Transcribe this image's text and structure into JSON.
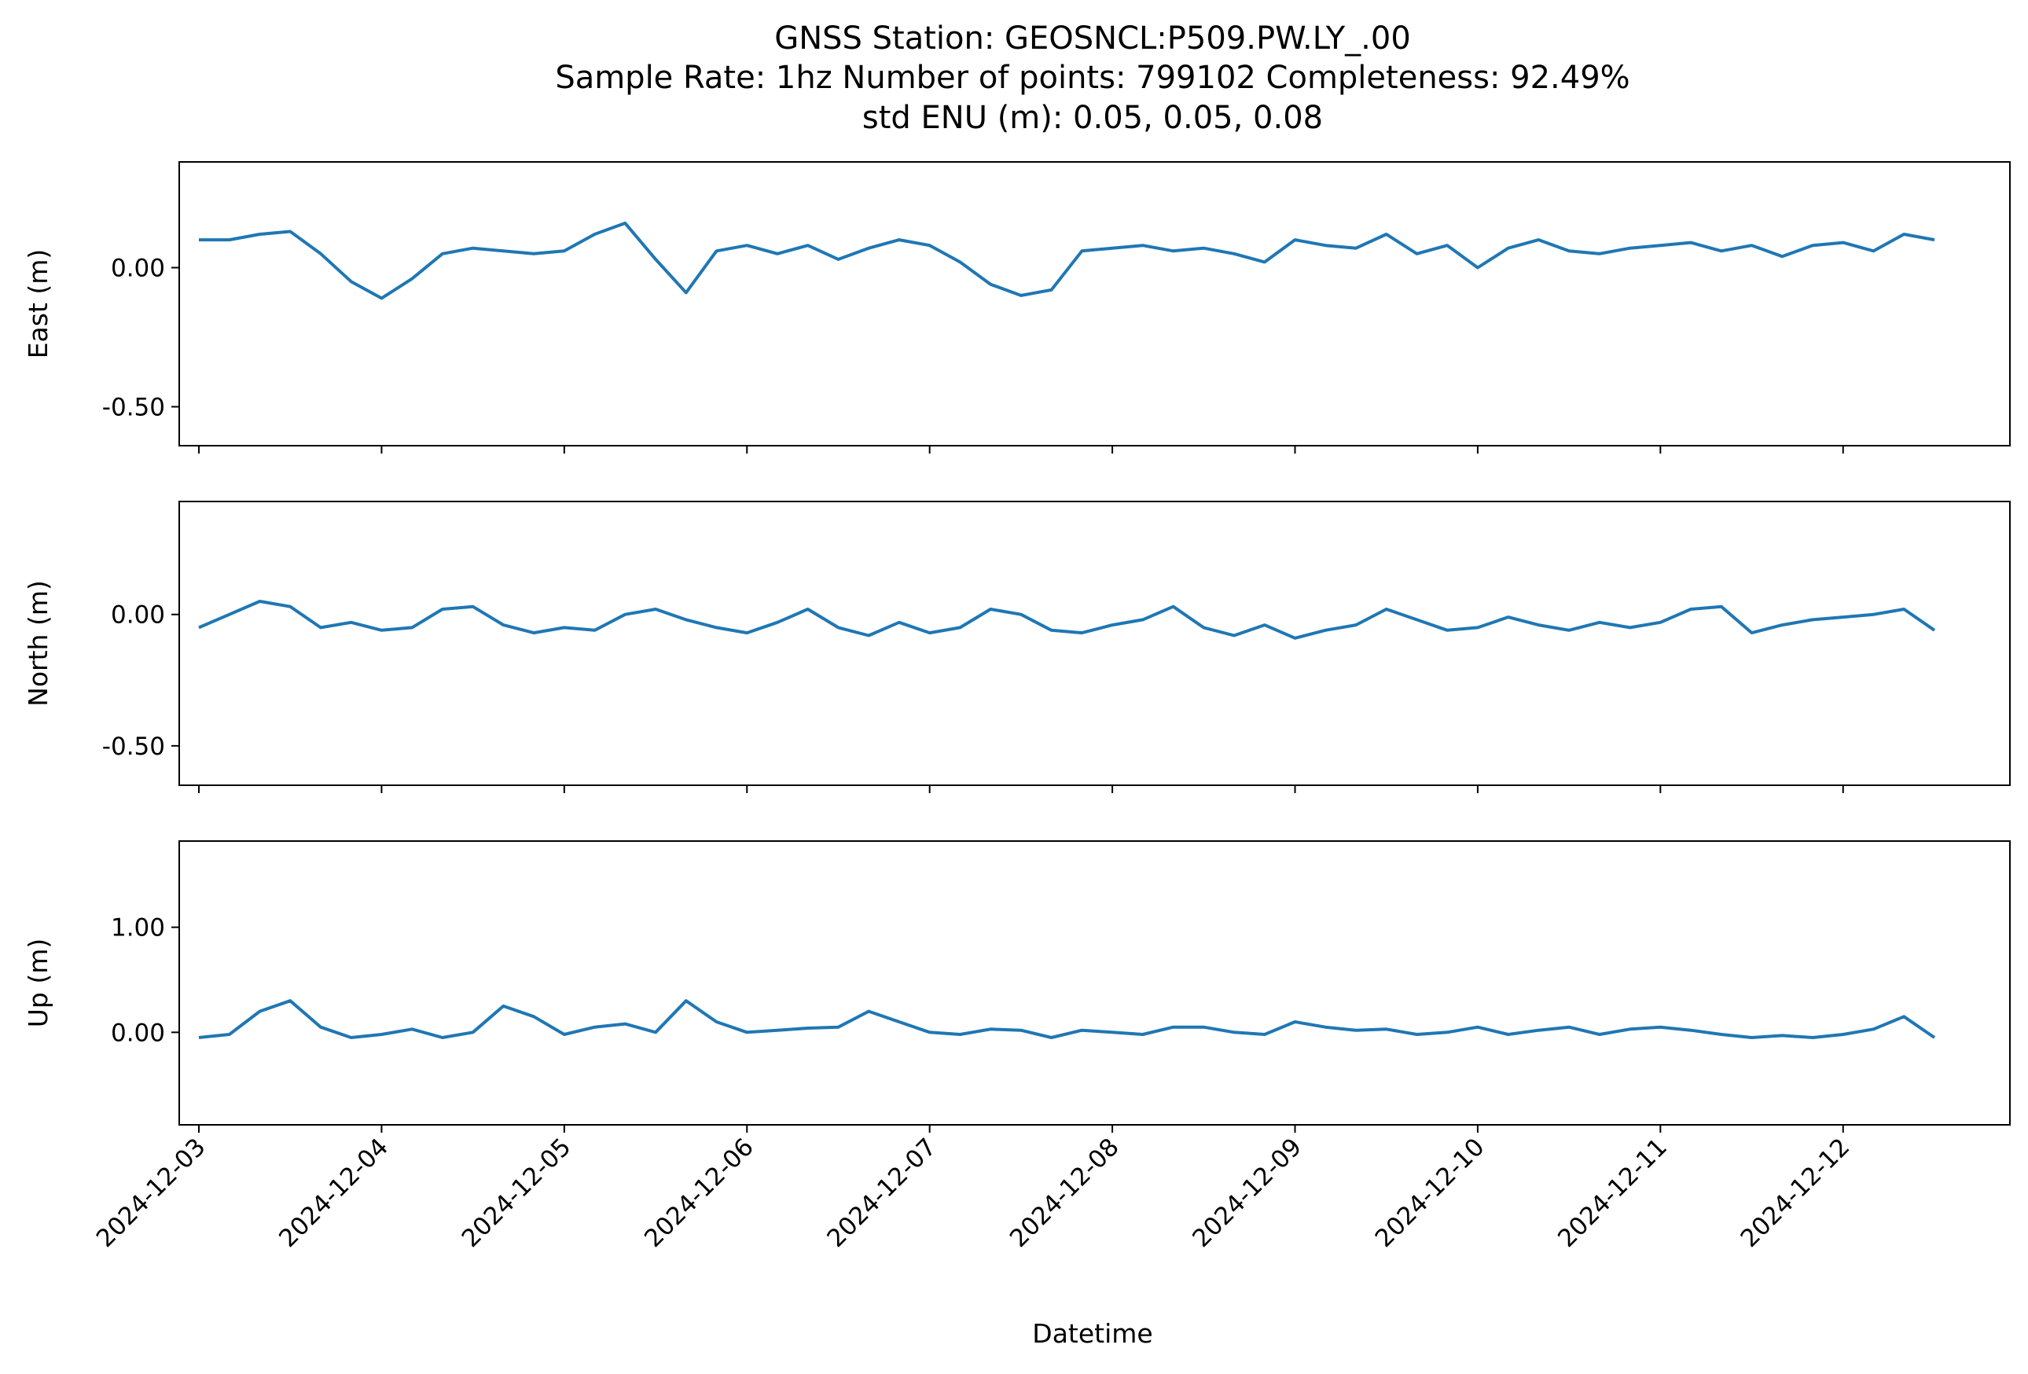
{
  "figure": {
    "title_lines": [
      "GNSS Station: GEOSNCL:P509.PW.LY_.00",
      "Sample Rate: 1hz   Number of points: 799102    Completeness:  92.49%",
      "std ENU (m):  0.05, 0.05, 0.08"
    ],
    "xlabel": "Datetime",
    "line_color": "#1f77b4"
  },
  "chart_data": [
    {
      "type": "line",
      "title": "GNSS Station: GEOSNCL:P509.PW.LY_.00",
      "xlabel": "",
      "ylabel": "East (m)",
      "x_range": [
        "2024-12-02T21:25",
        "2024-12-12T21:55"
      ],
      "ylim": [
        -0.64,
        0.38
      ],
      "yticks": [
        0.0,
        -0.5
      ],
      "ytick_labels": [
        "0.00",
        "-0.50"
      ],
      "x_ticks": [
        "2024-12-03",
        "2024-12-04",
        "2024-12-05",
        "2024-12-06",
        "2024-12-07",
        "2024-12-08",
        "2024-12-09",
        "2024-12-10",
        "2024-12-11",
        "2024-12-12"
      ],
      "x_tick_labels_shown": false,
      "grid": false,
      "series": [
        {
          "x": [
            "2024-12-03T00:00",
            "2024-12-03T04:00",
            "2024-12-03T08:00",
            "2024-12-03T12:00",
            "2024-12-03T16:00",
            "2024-12-03T20:00",
            "2024-12-04T00:00",
            "2024-12-04T04:00",
            "2024-12-04T08:00",
            "2024-12-04T12:00",
            "2024-12-04T16:00",
            "2024-12-04T20:00",
            "2024-12-05T00:00",
            "2024-12-05T04:00",
            "2024-12-05T08:00",
            "2024-12-05T12:00",
            "2024-12-05T16:00",
            "2024-12-05T20:00",
            "2024-12-06T00:00",
            "2024-12-06T04:00",
            "2024-12-06T08:00",
            "2024-12-06T12:00",
            "2024-12-06T16:00",
            "2024-12-06T20:00",
            "2024-12-07T00:00",
            "2024-12-07T04:00",
            "2024-12-07T08:00",
            "2024-12-07T12:00",
            "2024-12-07T16:00",
            "2024-12-07T20:00",
            "2024-12-08T00:00",
            "2024-12-08T04:00",
            "2024-12-08T08:00",
            "2024-12-08T12:00",
            "2024-12-08T16:00",
            "2024-12-08T20:00",
            "2024-12-09T00:00",
            "2024-12-09T04:00",
            "2024-12-09T08:00",
            "2024-12-09T12:00",
            "2024-12-09T16:00",
            "2024-12-09T20:00",
            "2024-12-10T00:00",
            "2024-12-10T04:00",
            "2024-12-10T08:00",
            "2024-12-10T12:00",
            "2024-12-10T16:00",
            "2024-12-10T20:00",
            "2024-12-11T00:00",
            "2024-12-11T04:00",
            "2024-12-11T08:00",
            "2024-12-11T12:00",
            "2024-12-11T16:00",
            "2024-12-11T20:00",
            "2024-12-12T00:00",
            "2024-12-12T04:00",
            "2024-12-12T08:00",
            "2024-12-12T12:00"
          ],
          "y": [
            0.1,
            0.1,
            0.12,
            0.13,
            0.05,
            -0.05,
            -0.11,
            -0.04,
            0.05,
            0.07,
            0.06,
            0.05,
            0.06,
            0.12,
            0.16,
            0.03,
            -0.09,
            0.06,
            0.08,
            0.05,
            0.08,
            0.03,
            0.07,
            0.1,
            0.08,
            0.02,
            -0.06,
            -0.1,
            -0.08,
            0.06,
            0.07,
            0.08,
            0.06,
            0.07,
            0.05,
            0.02,
            0.1,
            0.08,
            0.07,
            0.12,
            0.05,
            0.08,
            0.0,
            0.07,
            0.1,
            0.06,
            0.05,
            0.07,
            0.08,
            0.09,
            0.06,
            0.08,
            0.04,
            0.08,
            0.09,
            0.06,
            0.12,
            0.1
          ]
        }
      ]
    },
    {
      "type": "line",
      "xlabel": "",
      "ylabel": "North (m)",
      "x_range": [
        "2024-12-02T21:25",
        "2024-12-12T21:55"
      ],
      "ylim": [
        -0.65,
        0.43
      ],
      "yticks": [
        0.0,
        -0.5
      ],
      "ytick_labels": [
        "0.00",
        "-0.50"
      ],
      "x_ticks": [
        "2024-12-03",
        "2024-12-04",
        "2024-12-05",
        "2024-12-06",
        "2024-12-07",
        "2024-12-08",
        "2024-12-09",
        "2024-12-10",
        "2024-12-11",
        "2024-12-12"
      ],
      "x_tick_labels_shown": false,
      "grid": false,
      "series": [
        {
          "x": [
            "2024-12-03T00:00",
            "2024-12-03T04:00",
            "2024-12-03T08:00",
            "2024-12-03T12:00",
            "2024-12-03T16:00",
            "2024-12-03T20:00",
            "2024-12-04T00:00",
            "2024-12-04T04:00",
            "2024-12-04T08:00",
            "2024-12-04T12:00",
            "2024-12-04T16:00",
            "2024-12-04T20:00",
            "2024-12-05T00:00",
            "2024-12-05T04:00",
            "2024-12-05T08:00",
            "2024-12-05T12:00",
            "2024-12-05T16:00",
            "2024-12-05T20:00",
            "2024-12-06T00:00",
            "2024-12-06T04:00",
            "2024-12-06T08:00",
            "2024-12-06T12:00",
            "2024-12-06T16:00",
            "2024-12-06T20:00",
            "2024-12-07T00:00",
            "2024-12-07T04:00",
            "2024-12-07T08:00",
            "2024-12-07T12:00",
            "2024-12-07T16:00",
            "2024-12-07T20:00",
            "2024-12-08T00:00",
            "2024-12-08T04:00",
            "2024-12-08T08:00",
            "2024-12-08T12:00",
            "2024-12-08T16:00",
            "2024-12-08T20:00",
            "2024-12-09T00:00",
            "2024-12-09T04:00",
            "2024-12-09T08:00",
            "2024-12-09T12:00",
            "2024-12-09T16:00",
            "2024-12-09T20:00",
            "2024-12-10T00:00",
            "2024-12-10T04:00",
            "2024-12-10T08:00",
            "2024-12-10T12:00",
            "2024-12-10T16:00",
            "2024-12-10T20:00",
            "2024-12-11T00:00",
            "2024-12-11T04:00",
            "2024-12-11T08:00",
            "2024-12-11T12:00",
            "2024-12-11T16:00",
            "2024-12-11T20:00",
            "2024-12-12T00:00",
            "2024-12-12T04:00",
            "2024-12-12T08:00",
            "2024-12-12T12:00"
          ],
          "y": [
            -0.05,
            0.0,
            0.05,
            0.03,
            -0.05,
            -0.03,
            -0.06,
            -0.05,
            0.02,
            0.03,
            -0.04,
            -0.07,
            -0.05,
            -0.06,
            0.0,
            0.02,
            -0.02,
            -0.05,
            -0.07,
            -0.03,
            0.02,
            -0.05,
            -0.08,
            -0.03,
            -0.07,
            -0.05,
            0.02,
            0.0,
            -0.06,
            -0.07,
            -0.04,
            -0.02,
            0.03,
            -0.05,
            -0.08,
            -0.04,
            -0.09,
            -0.06,
            -0.04,
            0.02,
            -0.02,
            -0.06,
            -0.05,
            -0.01,
            -0.04,
            -0.06,
            -0.03,
            -0.05,
            -0.03,
            0.02,
            0.03,
            -0.07,
            -0.04,
            -0.02,
            -0.01,
            0.0,
            0.02,
            -0.06
          ]
        }
      ]
    },
    {
      "type": "line",
      "xlabel": "Datetime",
      "ylabel": "Up (m)",
      "x_range": [
        "2024-12-02T21:25",
        "2024-12-12T21:55"
      ],
      "ylim": [
        -0.88,
        1.82
      ],
      "yticks": [
        1.0,
        0.0
      ],
      "ytick_labels": [
        "1.00",
        "0.00"
      ],
      "x_ticks": [
        "2024-12-03",
        "2024-12-04",
        "2024-12-05",
        "2024-12-06",
        "2024-12-07",
        "2024-12-08",
        "2024-12-09",
        "2024-12-10",
        "2024-12-11",
        "2024-12-12"
      ],
      "x_tick_labels_shown": true,
      "grid": false,
      "series": [
        {
          "x": [
            "2024-12-03T00:00",
            "2024-12-03T04:00",
            "2024-12-03T08:00",
            "2024-12-03T12:00",
            "2024-12-03T16:00",
            "2024-12-03T20:00",
            "2024-12-04T00:00",
            "2024-12-04T04:00",
            "2024-12-04T08:00",
            "2024-12-04T12:00",
            "2024-12-04T16:00",
            "2024-12-04T20:00",
            "2024-12-05T00:00",
            "2024-12-05T04:00",
            "2024-12-05T08:00",
            "2024-12-05T12:00",
            "2024-12-05T16:00",
            "2024-12-05T20:00",
            "2024-12-06T00:00",
            "2024-12-06T04:00",
            "2024-12-06T08:00",
            "2024-12-06T12:00",
            "2024-12-06T16:00",
            "2024-12-06T20:00",
            "2024-12-07T00:00",
            "2024-12-07T04:00",
            "2024-12-07T08:00",
            "2024-12-07T12:00",
            "2024-12-07T16:00",
            "2024-12-07T20:00",
            "2024-12-08T00:00",
            "2024-12-08T04:00",
            "2024-12-08T08:00",
            "2024-12-08T12:00",
            "2024-12-08T16:00",
            "2024-12-08T20:00",
            "2024-12-09T00:00",
            "2024-12-09T04:00",
            "2024-12-09T08:00",
            "2024-12-09T12:00",
            "2024-12-09T16:00",
            "2024-12-09T20:00",
            "2024-12-10T00:00",
            "2024-12-10T04:00",
            "2024-12-10T08:00",
            "2024-12-10T12:00",
            "2024-12-10T16:00",
            "2024-12-10T20:00",
            "2024-12-11T00:00",
            "2024-12-11T04:00",
            "2024-12-11T08:00",
            "2024-12-11T12:00",
            "2024-12-11T16:00",
            "2024-12-11T20:00",
            "2024-12-12T00:00",
            "2024-12-12T04:00",
            "2024-12-12T08:00",
            "2024-12-12T12:00"
          ],
          "y": [
            -0.05,
            -0.02,
            0.2,
            0.3,
            0.05,
            -0.05,
            -0.02,
            0.03,
            -0.05,
            0.0,
            0.25,
            0.15,
            -0.02,
            0.05,
            0.08,
            0.0,
            0.3,
            0.1,
            0.0,
            0.02,
            0.04,
            0.05,
            0.2,
            0.1,
            0.0,
            -0.02,
            0.03,
            0.02,
            -0.05,
            0.02,
            0.0,
            -0.02,
            0.05,
            0.05,
            0.0,
            -0.02,
            0.1,
            0.05,
            0.02,
            0.03,
            -0.02,
            0.0,
            0.05,
            -0.02,
            0.02,
            0.05,
            -0.02,
            0.03,
            0.05,
            0.02,
            -0.02,
            -0.05,
            -0.03,
            -0.05,
            -0.02,
            0.03,
            0.15,
            -0.05
          ]
        }
      ]
    }
  ]
}
